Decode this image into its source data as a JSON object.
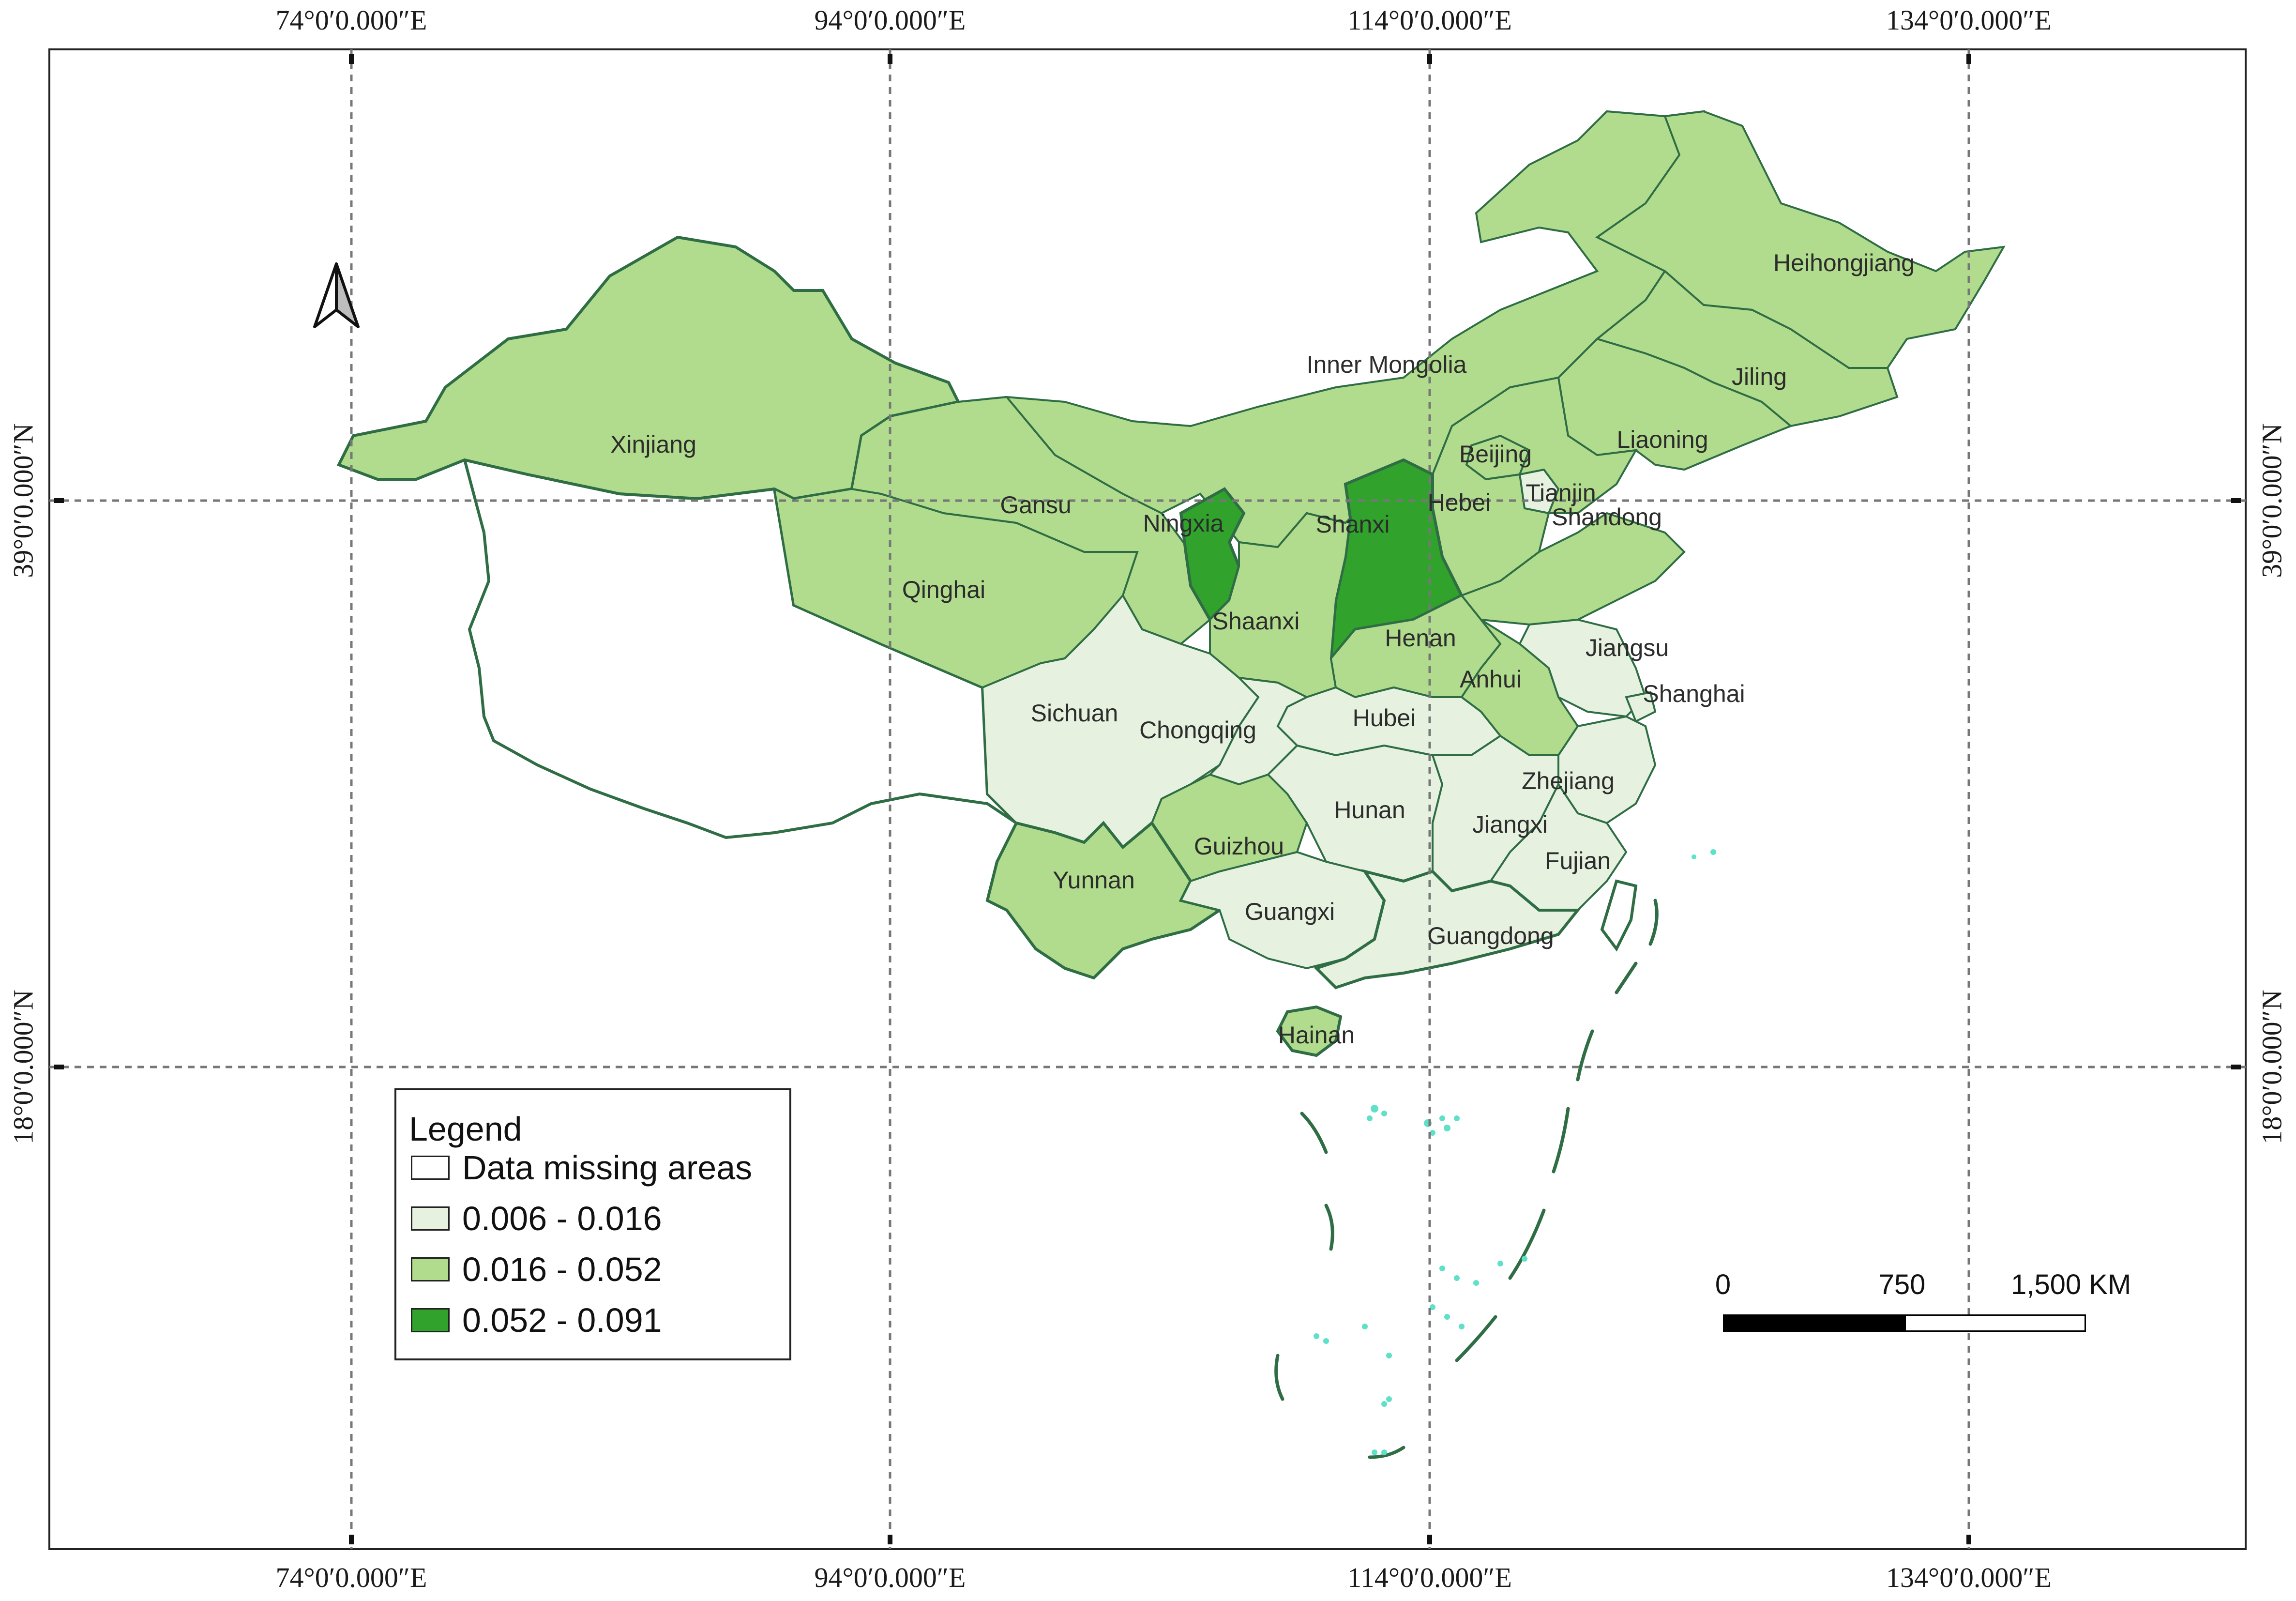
{
  "graticule": {
    "longitudes": [
      "74°0′0.000″E",
      "94°0′0.000″E",
      "114°0′0.000″E",
      "134°0′0.000″E"
    ],
    "latitudes": [
      "39°0′0.000″N",
      "18°0′0.000″N"
    ]
  },
  "provinces": [
    {
      "name": "Xinjiang",
      "class": "0.016 - 0.052"
    },
    {
      "name": "Qinghai",
      "class": "0.016 - 0.052"
    },
    {
      "name": "Gansu",
      "class": "0.016 - 0.052"
    },
    {
      "name": "Inner Mongolia",
      "class": "0.016 - 0.052"
    },
    {
      "name": "Heihongjiang",
      "class": "0.016 - 0.052"
    },
    {
      "name": "Jiling",
      "class": "0.016 - 0.052"
    },
    {
      "name": "Liaoning",
      "class": "0.016 - 0.052"
    },
    {
      "name": "Beijing",
      "class": "0.016 - 0.052"
    },
    {
      "name": "Tianjin",
      "class": "0.006 - 0.016"
    },
    {
      "name": "Hebei",
      "class": "0.016 - 0.052"
    },
    {
      "name": "Shanxi",
      "class": "0.052 - 0.091"
    },
    {
      "name": "Ningxia",
      "class": "0.052 - 0.091"
    },
    {
      "name": "Shaanxi",
      "class": "0.016 - 0.052"
    },
    {
      "name": "Shandong",
      "class": "0.016 - 0.052"
    },
    {
      "name": "Henan",
      "class": "0.016 - 0.052"
    },
    {
      "name": "Jiangsu",
      "class": "0.006 - 0.016"
    },
    {
      "name": "Shanghai",
      "class": "0.006 - 0.016"
    },
    {
      "name": "Anhui",
      "class": "0.016 - 0.052"
    },
    {
      "name": "Hubei",
      "class": "0.006 - 0.016"
    },
    {
      "name": "Sichuan",
      "class": "0.006 - 0.016"
    },
    {
      "name": "Chongqing",
      "class": "0.006 - 0.016"
    },
    {
      "name": "Zhejiang",
      "class": "0.006 - 0.016"
    },
    {
      "name": "Hunan",
      "class": "0.006 - 0.016"
    },
    {
      "name": "Jiangxi",
      "class": "0.006 - 0.016"
    },
    {
      "name": "Fujian",
      "class": "0.006 - 0.016"
    },
    {
      "name": "Guizhou",
      "class": "0.016 - 0.052"
    },
    {
      "name": "Yunnan",
      "class": "0.016 - 0.052"
    },
    {
      "name": "Guangxi",
      "class": "0.006 - 0.016"
    },
    {
      "name": "Guangdong",
      "class": "0.006 - 0.016"
    },
    {
      "name": "Hainan",
      "class": "0.016 - 0.052"
    }
  ],
  "legend": {
    "title": "Legend",
    "items": [
      {
        "label": "Data missing areas",
        "color": "#ffffff"
      },
      {
        "label": "0.006 - 0.016",
        "color": "#e6f2df"
      },
      {
        "label": "0.016 - 0.052",
        "color": "#b1dc8d"
      },
      {
        "label": "0.052 - 0.091",
        "color": "#31a22c"
      }
    ]
  },
  "scalebar": {
    "ticks": [
      "0",
      "750",
      "1,500 KM"
    ]
  },
  "colors": {
    "border": "#2f6d45",
    "grid": "#777777",
    "frame": "#222222",
    "islands": "#5fe0c8"
  }
}
